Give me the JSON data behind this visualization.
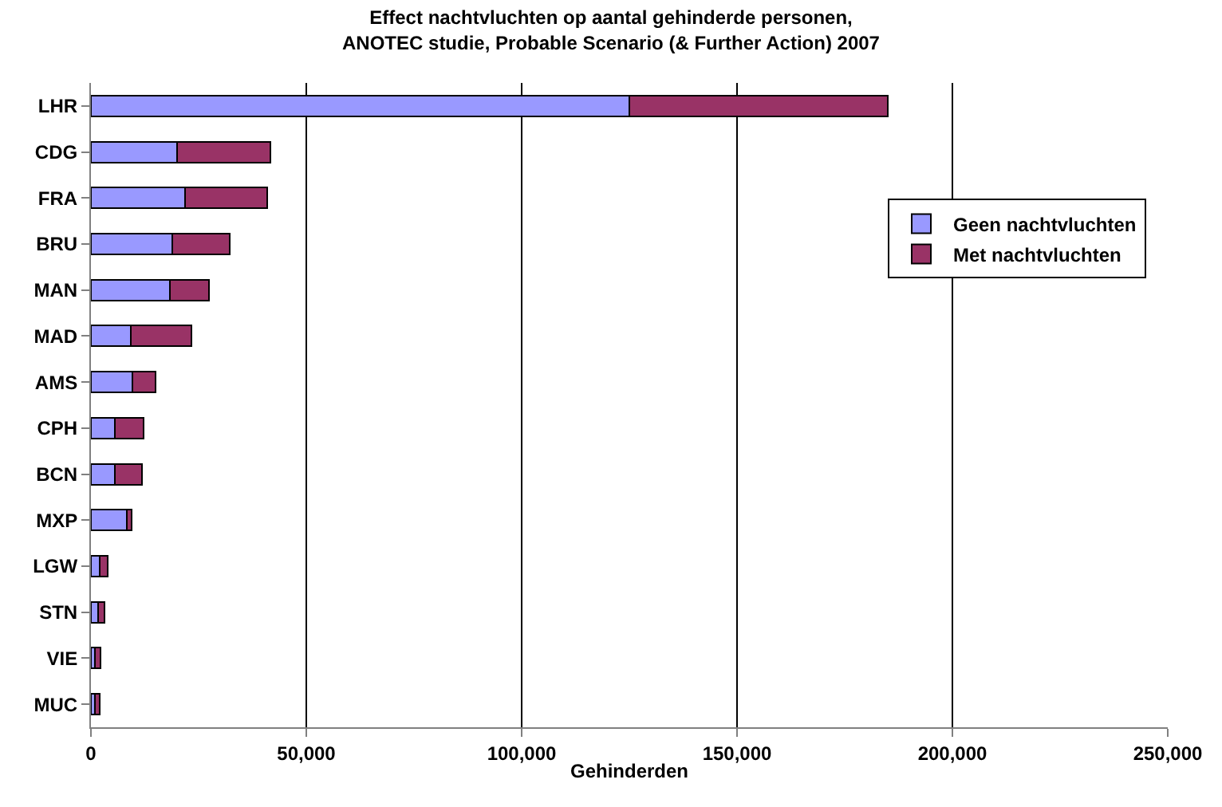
{
  "chart_data": {
    "type": "bar",
    "orientation": "horizontal",
    "stacked": true,
    "title": "Effect nachtvluchten op aantal gehinderde personen,\nANOTEC studie, Probable Scenario (& Further Action) 2007",
    "xlabel": "Gehinderden",
    "categories": [
      "LHR",
      "CDG",
      "FRA",
      "BRU",
      "MAN",
      "MAD",
      "AMS",
      "CPH",
      "BCN",
      "MXP",
      "LGW",
      "STN",
      "VIE",
      "MUC"
    ],
    "series": [
      {
        "name": "Geen nachtvluchten",
        "color": "#9999ff",
        "values": [
          125000,
          20000,
          21900,
          18900,
          18300,
          9300,
          9600,
          5500,
          5600,
          8300,
          2000,
          1700,
          1000,
          1000
        ]
      },
      {
        "name": "Met nachtvluchten",
        "color": "#993366",
        "values": [
          60000,
          21700,
          19000,
          13400,
          9100,
          14000,
          5400,
          6700,
          6200,
          1100,
          1800,
          1500,
          1300,
          1100
        ]
      }
    ],
    "xlim": [
      0,
      250000
    ],
    "xticks": [
      {
        "value": 0,
        "label": "0"
      },
      {
        "value": 50000,
        "label": "50,000"
      },
      {
        "value": 100000,
        "label": "100,000"
      },
      {
        "value": 150000,
        "label": "150,000"
      },
      {
        "value": 200000,
        "label": "200,000"
      },
      {
        "value": 250000,
        "label": "250,000"
      }
    ],
    "grid": "x",
    "legend": "right"
  }
}
